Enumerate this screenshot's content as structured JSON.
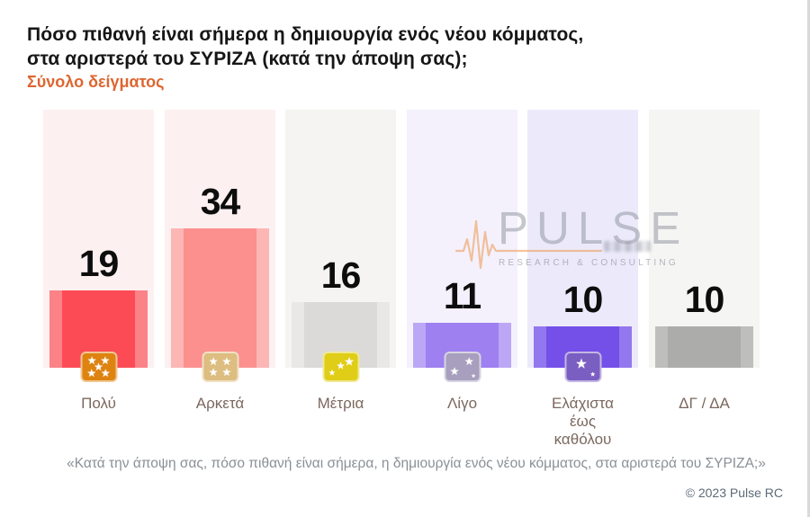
{
  "page": {
    "title_line1": "Πόσο πιθανή είναι σήμερα η δημιουργία ενός νέου κόμματος,",
    "title_line2": "στα αριστερά του ΣΥΡΙΖΑ (κατά την άποψη σας);",
    "subtitle": "Σύνολο δείγματος",
    "subtitle_color": "#dd6630",
    "footnote": "«Κατά την άποψη σας, πόσο πιθανή είναι σήμερα, η δημιουργία ενός νέου κόμματος, στα αριστερά του ΣΥΡΙΖΑ;»",
    "copyright": "© 2023 Pulse RC"
  },
  "watermark": {
    "brand": "PULSE",
    "tagline": "RESEARCH & CONSULTING",
    "icon": "pulse-ekg-icon",
    "accent_color": "#eda061"
  },
  "chart_data": {
    "type": "bar",
    "title": "Πόσο πιθανή είναι σήμερα η δημιουργία ενός νέου κόμματος, στα αριστερά του ΣΥΡΙΖΑ (κατά την άποψη σας);",
    "subtitle": "Σύνολο δείγματος",
    "categories": [
      "Πολύ",
      "Αρκετά",
      "Μέτρια",
      "Λίγο",
      "Ελάχιστα έως καθόλου",
      "ΔΓ / ΔΑ"
    ],
    "values": [
      19,
      34,
      16,
      11,
      10,
      10
    ],
    "value_labels_shown": true,
    "axes_shown": false,
    "grid": false,
    "legend": false,
    "columns": [
      {
        "label": "Πολύ",
        "label_display": "Πολύ",
        "value": 19,
        "bar_color": "#fc4b55",
        "bar_edge_color": "#fb8287",
        "track_color": "#fdf0f1",
        "badge": {
          "stars": 5,
          "color": "#de8310"
        }
      },
      {
        "label": "Αρκετά",
        "label_display": "Αρκετά",
        "value": 34,
        "bar_color": "#fb908e",
        "bar_edge_color": "#fcb6b4",
        "track_color": "#fdf0f1",
        "badge": {
          "stars": 4,
          "color": "#ddbd80"
        }
      },
      {
        "label": "Μέτρια",
        "label_display": "Μέτρια",
        "value": 16,
        "bar_color": "#dbdad9",
        "bar_edge_color": "#e9e8e7",
        "track_color": "#f5f4f2",
        "badge": {
          "stars": 3,
          "color": "#e0cd17"
        }
      },
      {
        "label": "Λίγο",
        "label_display": "Λίγο",
        "value": 11,
        "bar_color": "#9e80f0",
        "bar_edge_color": "#bba7f5",
        "track_color": "#f4f1fc",
        "badge": {
          "stars": 2,
          "color": "#a79fbd"
        }
      },
      {
        "label": "Ελάχιστα έως καθόλου",
        "label_display": "Ελάχιστα\nέως\nκαθόλου",
        "value": 10,
        "bar_color": "#7450e9",
        "bar_edge_color": "#9377ee",
        "track_color": "#eceafa",
        "badge": {
          "stars": 1,
          "color": "#7a5ec2"
        }
      },
      {
        "label": "ΔΓ / ΔΑ",
        "label_display": "ΔΓ / ΔΑ",
        "value": 10,
        "bar_color": "#acacab",
        "bar_edge_color": "#bebebd",
        "track_color": "#f5f5f3",
        "badge": null
      }
    ]
  }
}
